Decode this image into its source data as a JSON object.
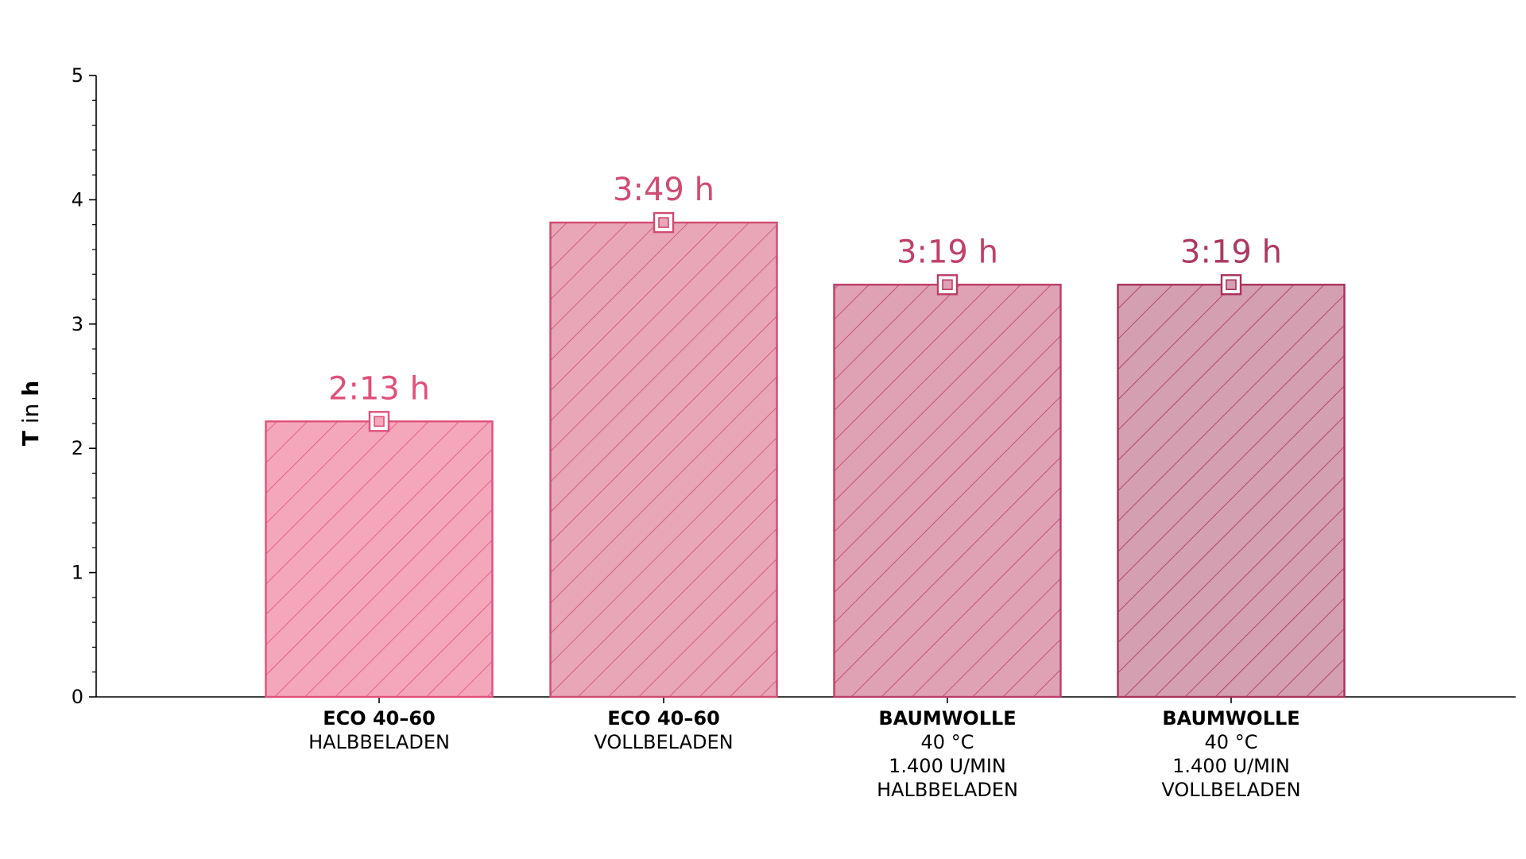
{
  "chart_data": {
    "type": "bar",
    "ylabel": {
      "bold1": "T",
      "regular": " in ",
      "bold2": "h"
    },
    "ylim": [
      0,
      5
    ],
    "yticks": [
      "0",
      "1",
      "2",
      "3",
      "4",
      "5"
    ],
    "grid": false,
    "categories": [
      {
        "lines": [
          "ECO 40–60",
          "HALBBELADEN"
        ]
      },
      {
        "lines": [
          "ECO 40–60",
          "VOLLBELADEN"
        ]
      },
      {
        "lines": [
          "BAUMWOLLE",
          "40 °C",
          "1.400 U/MIN",
          "HALBBELADEN"
        ]
      },
      {
        "lines": [
          "BAUMWOLLE",
          "40 °C",
          "1.400 U/MIN",
          "VOLLBELADEN"
        ]
      }
    ],
    "values": [
      2.2167,
      3.8167,
      3.3167,
      3.3167
    ],
    "value_labels": [
      "2:13 h",
      "3:49 h",
      "3:19 h",
      "3:19 h"
    ],
    "colors": {
      "fill": [
        "#f4a7bb",
        "#e8a6b7",
        "#dfa2b5",
        "#d49fb0"
      ],
      "edge": [
        "#e0507a",
        "#d04b72",
        "#bc3d66",
        "#a8325a"
      ],
      "label": [
        "#e0507a",
        "#d04b72",
        "#c04068",
        "#ad3862"
      ]
    }
  }
}
